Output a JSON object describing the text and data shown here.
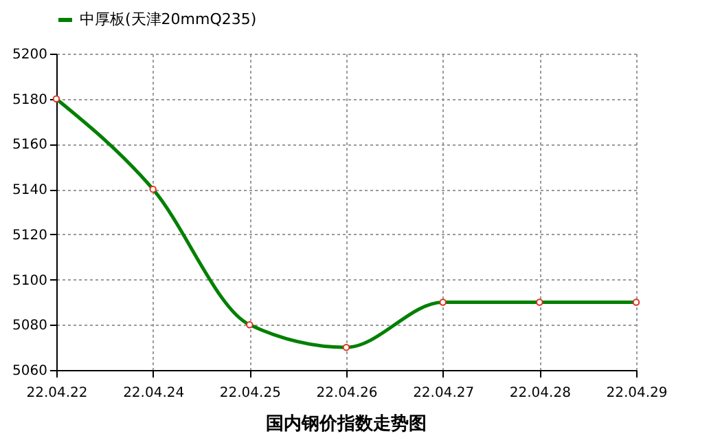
{
  "chart_data": {
    "type": "line",
    "title": "国内钢价指数走势图",
    "categories": [
      "22.04.22",
      "22.04.24",
      "22.04.25",
      "22.04.26",
      "22.04.27",
      "22.04.28",
      "22.04.29"
    ],
    "series": [
      {
        "name": "中厚板(天津20mmQ235)",
        "color": "#008000",
        "values": [
          5180,
          5140,
          5080,
          5070,
          5090,
          5090,
          5090
        ]
      }
    ],
    "ylim": [
      5060,
      5200
    ],
    "yticks": [
      5060,
      5080,
      5100,
      5120,
      5140,
      5160,
      5180,
      5200
    ],
    "grid": true,
    "legend": "top",
    "marker": "circle",
    "line_style": "solid"
  }
}
